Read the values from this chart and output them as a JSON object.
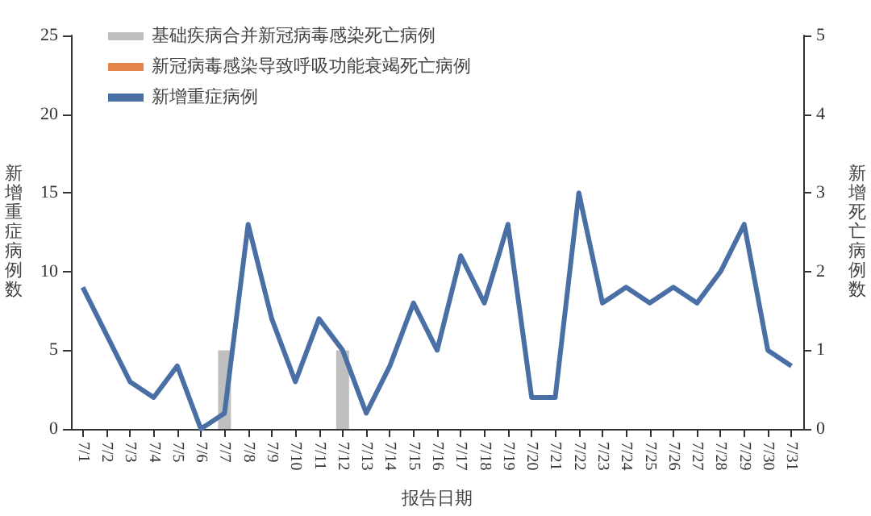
{
  "chart_data": {
    "type": "bar",
    "xlabel": "报告日期",
    "ylabel": "新增重症病例数",
    "y2label": "新增死亡病例数",
    "categories": [
      "7/1",
      "7/2",
      "7/3",
      "7/4",
      "7/5",
      "7/6",
      "7/7",
      "7/8",
      "7/9",
      "7/10",
      "7/11",
      "7/12",
      "7/13",
      "7/14",
      "7/15",
      "7/16",
      "7/17",
      "7/18",
      "7/19",
      "7/20",
      "7/21",
      "7/22",
      "7/23",
      "7/24",
      "7/25",
      "7/26",
      "7/27",
      "7/28",
      "7/29",
      "7/30",
      "7/31"
    ],
    "series": [
      {
        "name": "基础疾病合并新冠病毒感染死亡病例",
        "axis": "y2",
        "color": "#bfbfbf",
        "values": [
          null,
          null,
          null,
          null,
          null,
          null,
          1,
          null,
          null,
          null,
          null,
          1,
          null,
          null,
          null,
          null,
          null,
          null,
          null,
          null,
          null,
          null,
          null,
          null,
          null,
          null,
          null,
          null,
          null,
          null,
          null
        ]
      },
      {
        "name": "新冠病毒感染导致呼吸功能衰竭死亡病例",
        "axis": "y2",
        "color": "#e5854a",
        "values": [
          null,
          null,
          null,
          null,
          null,
          null,
          null,
          null,
          null,
          null,
          null,
          null,
          null,
          null,
          null,
          null,
          null,
          null,
          null,
          null,
          null,
          null,
          null,
          null,
          null,
          null,
          null,
          null,
          null,
          null,
          null
        ]
      },
      {
        "name": "新增重症病例",
        "type": "line",
        "color": "#4a6fa5",
        "values": [
          9,
          6,
          3,
          2,
          4,
          0,
          1,
          13,
          7,
          3,
          7,
          5,
          1,
          4,
          8,
          5,
          11,
          8,
          13,
          2,
          2,
          15,
          8,
          9,
          8,
          9,
          8,
          10,
          13,
          5,
          4
        ]
      }
    ],
    "stacked": true,
    "ylim": [
      0,
      25
    ],
    "yticks": [
      0,
      5,
      10,
      15,
      20,
      25
    ],
    "y2lim": [
      0,
      5
    ],
    "y2ticks": [
      0,
      1,
      2,
      3,
      4,
      5
    ],
    "grid": false,
    "legend": "top left",
    "marker": "none",
    "line_style": "solid"
  }
}
